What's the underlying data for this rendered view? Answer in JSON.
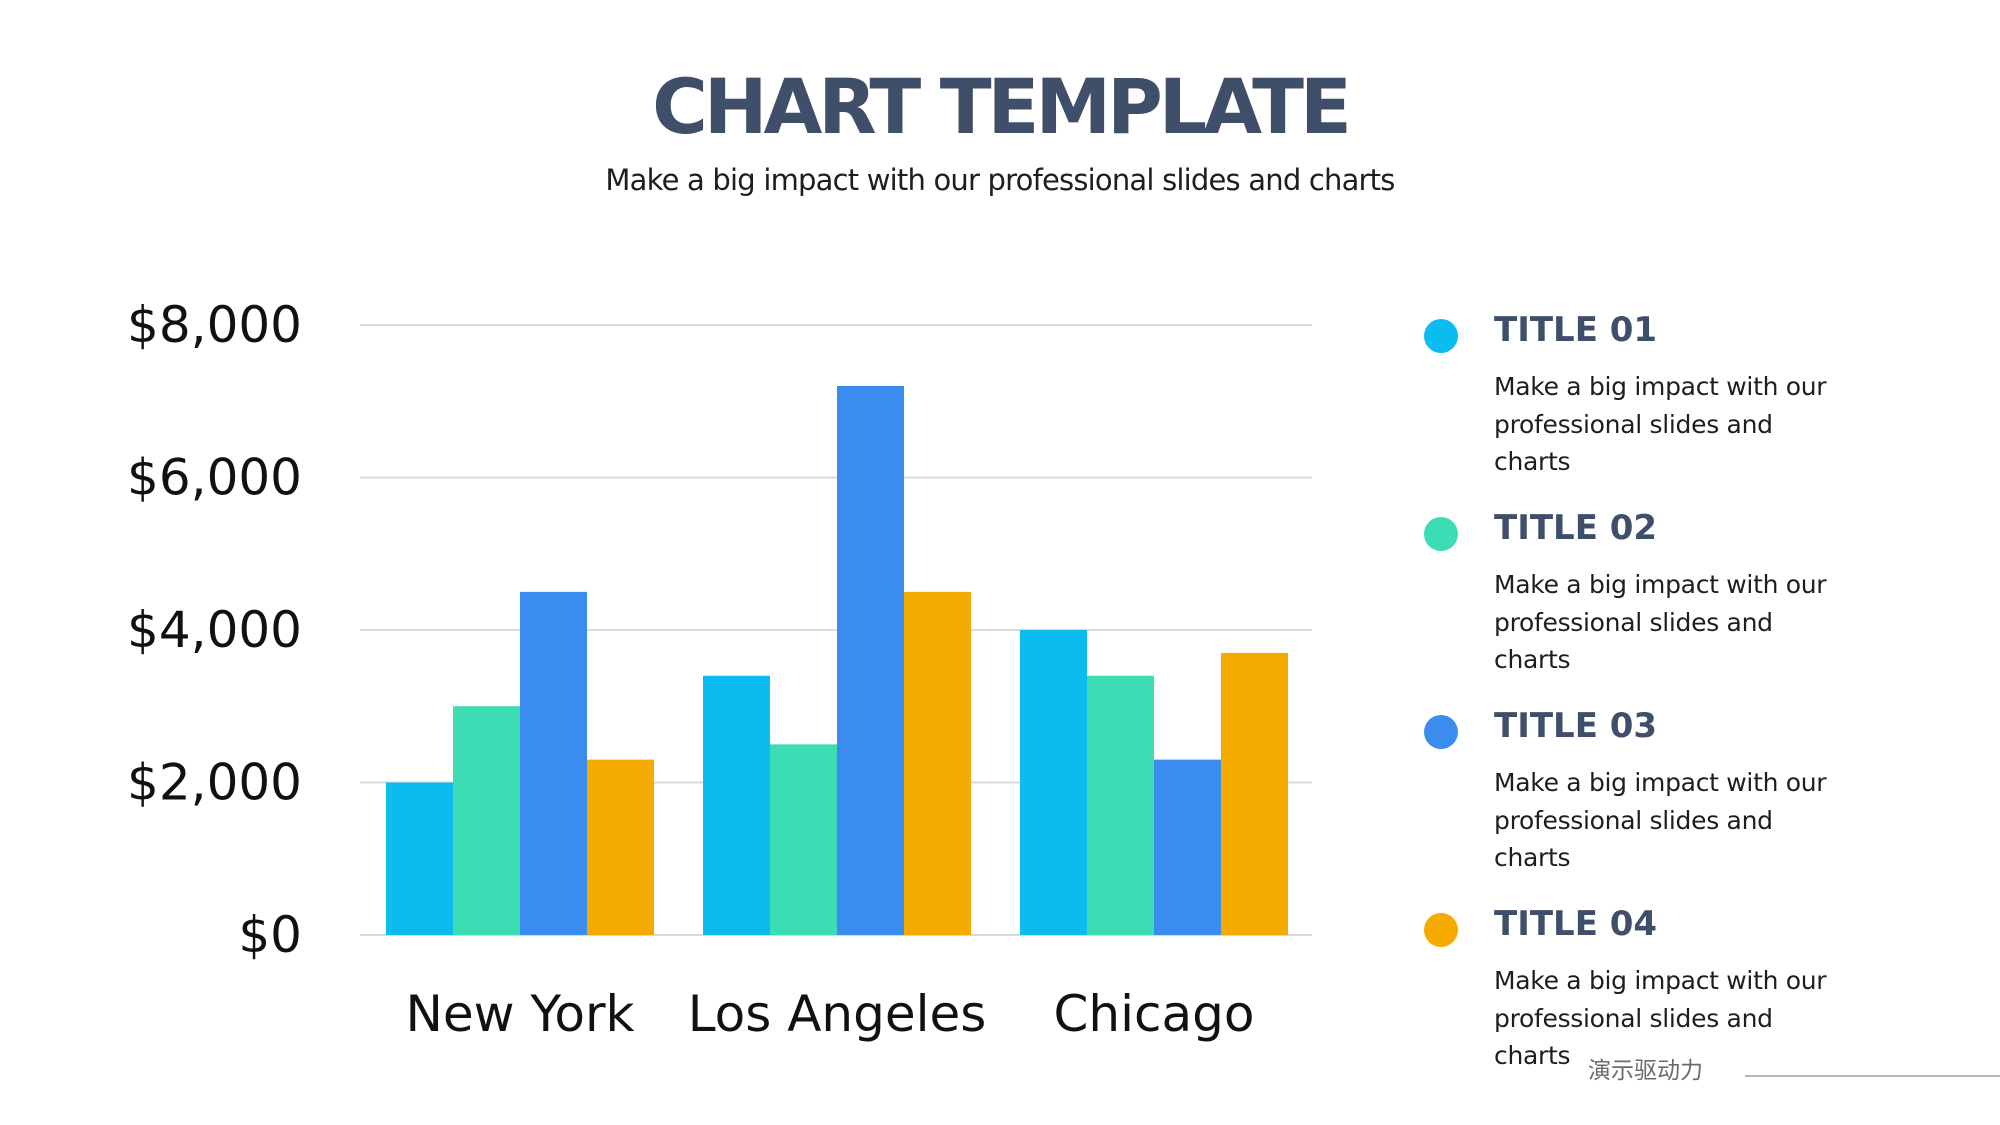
{
  "header": {
    "title": "CHART TEMPLATE",
    "subtitle": "Make a big impact with our professional slides and charts"
  },
  "chart_data": {
    "type": "bar",
    "title": "",
    "xlabel": "",
    "ylabel": "",
    "categories": [
      "New York",
      "Los Angeles",
      "Chicago"
    ],
    "ylim": [
      0,
      8000
    ],
    "yticks": [
      0,
      2000,
      4000,
      6000,
      8000
    ],
    "ytick_labels": [
      "$0",
      "$2,000",
      "$4,000",
      "$6,000",
      "$8,000"
    ],
    "grid": true,
    "legend_position": "right",
    "series": [
      {
        "name": "TITLE 01",
        "color": "#0dbcef",
        "values": [
          2000,
          3400,
          4000
        ]
      },
      {
        "name": "TITLE 02",
        "color": "#3cdcb4",
        "values": [
          3000,
          2500,
          3400
        ]
      },
      {
        "name": "TITLE 03",
        "color": "#3a8cee",
        "values": [
          4500,
          7200,
          2300
        ]
      },
      {
        "name": "TITLE 04",
        "color": "#f5aa00",
        "values": [
          2300,
          4500,
          3700
        ]
      }
    ]
  },
  "legend": {
    "items": [
      {
        "title": "TITLE 01",
        "text": "Make a big impact with our professional slides and charts",
        "color": "#0dbcef"
      },
      {
        "title": "TITLE 02",
        "text": "Make a big impact with our professional slides and charts",
        "color": "#3cdcb4"
      },
      {
        "title": "TITLE 03",
        "text": "Make a big impact with our professional slides and charts",
        "color": "#3a8cee"
      },
      {
        "title": "TITLE 04",
        "text": "Make a big impact with our professional slides and charts",
        "color": "#f5aa00"
      }
    ]
  },
  "watermark": {
    "text": "演示驱动力"
  }
}
